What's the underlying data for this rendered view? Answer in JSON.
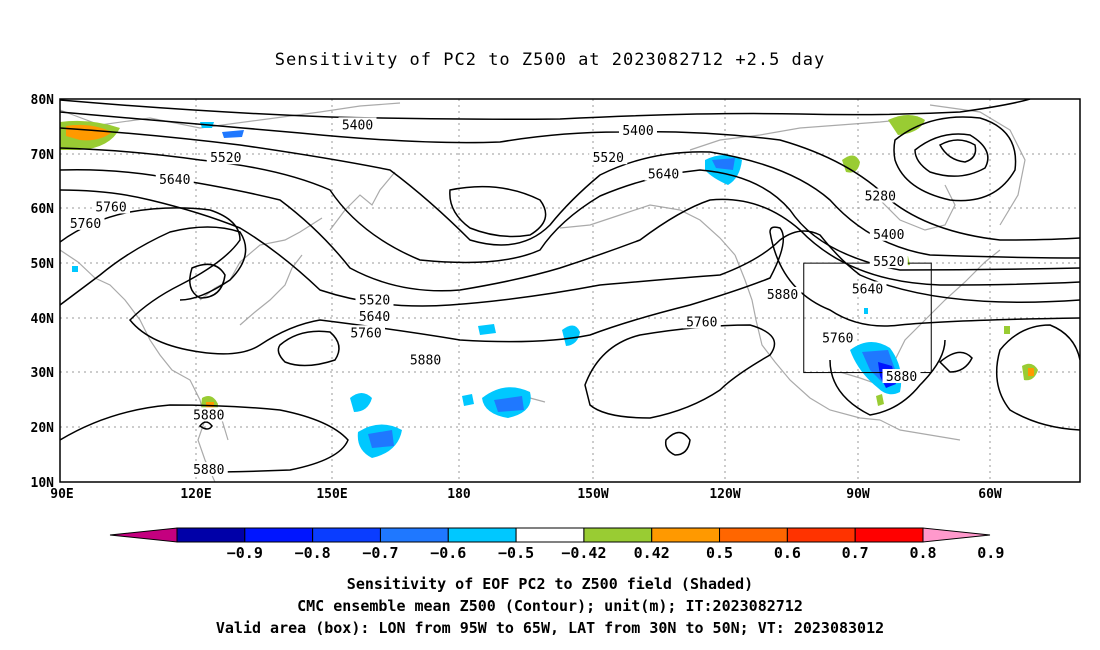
{
  "title": "Sensitivity of PC2 to Z500 at 2023082712 +2.5 day",
  "map": {
    "lat_labels": [
      "80N",
      "70N",
      "60N",
      "50N",
      "40N",
      "30N",
      "20N",
      "10N"
    ],
    "lon_labels": [
      "90E",
      "120E",
      "150E",
      "180",
      "150W",
      "120W",
      "90W",
      "60W"
    ],
    "contour_labels": [
      {
        "text": "5400",
        "lon": 160,
        "lat": 75
      },
      {
        "text": "5400",
        "lon": -134,
        "lat": 74
      },
      {
        "text": "5520",
        "lon": 129,
        "lat": 69
      },
      {
        "text": "5520",
        "lon": -141,
        "lat": 69
      },
      {
        "text": "5640",
        "lon": 117,
        "lat": 65
      },
      {
        "text": "5640",
        "lon": -128,
        "lat": 66
      },
      {
        "text": "5760",
        "lon": 102,
        "lat": 60
      },
      {
        "text": "5760",
        "lon": 96,
        "lat": 57
      },
      {
        "text": "5280",
        "lon": -77,
        "lat": 62
      },
      {
        "text": "5400",
        "lon": -75,
        "lat": 55
      },
      {
        "text": "5520",
        "lon": -75,
        "lat": 50
      },
      {
        "text": "5640",
        "lon": -80,
        "lat": 45
      },
      {
        "text": "5880",
        "lon": -100,
        "lat": 44
      },
      {
        "text": "5520",
        "lon": 164,
        "lat": 43
      },
      {
        "text": "5640",
        "lon": 164,
        "lat": 40
      },
      {
        "text": "5760",
        "lon": 162,
        "lat": 37
      },
      {
        "text": "5760",
        "lon": -119,
        "lat": 39
      },
      {
        "text": "5760",
        "lon": -87,
        "lat": 36
      },
      {
        "text": "5880",
        "lon": 176,
        "lat": 32
      },
      {
        "text": "5880",
        "lon": -72,
        "lat": 29
      },
      {
        "text": "5880",
        "lon": 125,
        "lat": 22
      },
      {
        "text": "5880",
        "lon": 125,
        "lat": 12
      }
    ],
    "valid_box": {
      "lon_w": -95,
      "lon_e": -65,
      "lat_s": 30,
      "lat_n": 50
    }
  },
  "colorbar": {
    "labels": [
      "-0.9",
      "-0.8",
      "-0.7",
      "-0.6",
      "-0.5",
      "-0.42",
      "0.42",
      "0.5",
      "0.6",
      "0.7",
      "0.8",
      "0.9"
    ],
    "colors": [
      "#c4007f",
      "#0000a8",
      "#0015ff",
      "#0a3dff",
      "#1f78ff",
      "#00c8ff",
      "#ffffff",
      "#99cc33",
      "#ff9900",
      "#ff6600",
      "#ff3300",
      "#ff0000",
      "#ff99cc"
    ]
  },
  "captions": {
    "line1": "Sensitivity of EOF PC2 to Z500 field (Shaded)",
    "line2": "CMC ensemble mean Z500 (Contour); unit(m); IT:2023082712",
    "line3": "Valid area (box): LON from 95W to 65W, LAT from 30N to 50N; VT: 2023083012"
  }
}
